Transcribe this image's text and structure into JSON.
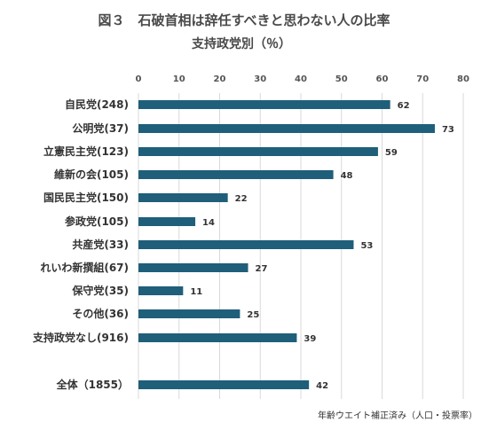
{
  "chart_data": {
    "type": "bar",
    "orientation": "horizontal",
    "title": "図３　石破首相は辞任すべきと思わない人の比率",
    "subtitle": "支持政党別（％）",
    "xlim": [
      0,
      80
    ],
    "x_ticks": [
      "0",
      "10",
      "20",
      "30",
      "40",
      "50",
      "60",
      "70",
      "80"
    ],
    "categories": [
      "自民党(248)",
      "公明党(37)",
      "立憲民主党(123)",
      "維新の会(105)",
      "国民民主党(150)",
      "参政党(105)",
      "共産党(33)",
      "れいわ新撰組(67)",
      "保守党(35)",
      "その他(36)",
      "支持政党なし(916)",
      "全体（1855）"
    ],
    "values": [
      62,
      73,
      59,
      48,
      22,
      14,
      53,
      27,
      11,
      25,
      39,
      42
    ],
    "bar_color": "#1f5f7a",
    "grid": true,
    "note": "年齢ウエイト補正済み（人口・投票率）"
  }
}
